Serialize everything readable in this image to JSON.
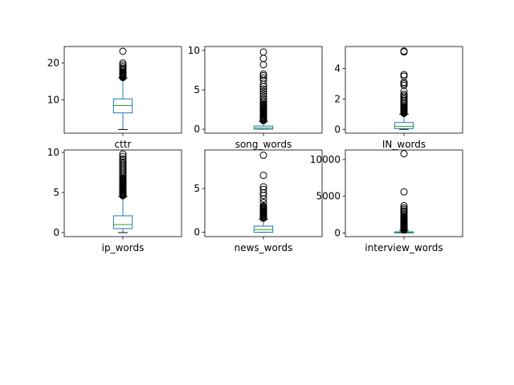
{
  "chart_data": [
    {
      "type": "box",
      "name": "cttr",
      "xlabel": "cttr",
      "ylim": [
        1.0,
        24.5
      ],
      "yticks": [
        10,
        20
      ],
      "stats": {
        "whisker_low": 2.0,
        "q1": 6.5,
        "median": 8.5,
        "q3": 10.3,
        "whisker_high": 16.0
      },
      "outliers": [
        16.1,
        16.3,
        16.5,
        16.7,
        16.9,
        17.1,
        17.3,
        17.5,
        17.8,
        18.2,
        18.6,
        19.0,
        19.5,
        20.0,
        23.2
      ]
    },
    {
      "type": "box",
      "name": "song_words",
      "xlabel": "song_words",
      "ylim": [
        -0.5,
        10.5
      ],
      "yticks": [
        0,
        5,
        10
      ],
      "stats": {
        "whisker_low": 0.0,
        "q1": 0.0,
        "median": 0.15,
        "q3": 0.4,
        "whisker_high": 1.0
      },
      "outliers": [
        1.1,
        1.2,
        1.3,
        1.4,
        1.5,
        1.6,
        1.7,
        1.8,
        1.9,
        2.0,
        2.1,
        2.2,
        2.3,
        2.4,
        2.5,
        2.6,
        2.7,
        2.8,
        2.9,
        3.0,
        3.1,
        3.2,
        3.4,
        3.6,
        3.9,
        4.2,
        4.5,
        4.8,
        5.1,
        5.4,
        5.7,
        6.2,
        6.5,
        6.8,
        7.0,
        8.2,
        9.0,
        9.8
      ]
    },
    {
      "type": "box",
      "name": "IN_words",
      "xlabel": "IN_words",
      "ylim": [
        -0.25,
        5.45
      ],
      "yticks": [
        0,
        2,
        4
      ],
      "stats": {
        "whisker_low": 0.0,
        "q1": 0.05,
        "median": 0.2,
        "q3": 0.45,
        "whisker_high": 1.0
      },
      "outliers": [
        1.05,
        1.1,
        1.15,
        1.2,
        1.25,
        1.3,
        1.35,
        1.4,
        1.45,
        1.5,
        1.6,
        1.7,
        1.8,
        1.9,
        2.0,
        2.1,
        2.2,
        2.3,
        2.5,
        2.9,
        3.0,
        3.1,
        3.5,
        3.6,
        5.1,
        5.15
      ]
    },
    {
      "type": "box",
      "name": "ip_words",
      "xlabel": "ip_words",
      "ylim": [
        -0.5,
        10.3
      ],
      "yticks": [
        0,
        5,
        10
      ],
      "stats": {
        "whisker_low": 0.0,
        "q1": 0.5,
        "median": 1.0,
        "q3": 2.1,
        "whisker_high": 4.5
      },
      "outliers": [
        4.6,
        4.7,
        4.8,
        4.9,
        5.0,
        5.1,
        5.2,
        5.3,
        5.4,
        5.5,
        5.6,
        5.7,
        5.8,
        5.9,
        6.0,
        6.1,
        6.2,
        6.3,
        6.4,
        6.5,
        6.6,
        6.7,
        6.8,
        7.0,
        7.2,
        7.4,
        7.6,
        7.8,
        8.0,
        8.2,
        8.4,
        8.6,
        8.8,
        9.0,
        9.2,
        9.5,
        9.8
      ]
    },
    {
      "type": "box",
      "name": "news_words",
      "xlabel": "news_words",
      "ylim": [
        -0.5,
        9.4
      ],
      "yticks": [
        0,
        5
      ],
      "stats": {
        "whisker_low": 0.0,
        "q1": 0.0,
        "median": 0.3,
        "q3": 0.7,
        "whisker_high": 1.5
      },
      "outliers": [
        1.6,
        1.7,
        1.8,
        1.9,
        2.0,
        2.1,
        2.2,
        2.3,
        2.4,
        2.5,
        2.6,
        2.7,
        2.8,
        2.9,
        3.0,
        3.4,
        3.8,
        4.2,
        4.5,
        4.9,
        5.2,
        6.5,
        8.8
      ]
    },
    {
      "type": "box",
      "name": "interview_words",
      "xlabel": "interview_words",
      "ylim": [
        -500,
        11300
      ],
      "yticks": [
        0,
        5000,
        10000
      ],
      "stats": {
        "whisker_low": 0,
        "q1": 0,
        "median": 60,
        "q3": 150,
        "whisker_high": 350
      },
      "outliers": [
        400,
        500,
        600,
        700,
        800,
        900,
        1000,
        1100,
        1200,
        1300,
        1400,
        1500,
        1600,
        1700,
        1800,
        1900,
        2000,
        2100,
        2200,
        2400,
        2600,
        2800,
        3000,
        3200,
        3400,
        3700,
        5600,
        10800
      ]
    }
  ],
  "colors": {
    "box": "#1f77b4",
    "median": "#2ca02c",
    "outlier": "#000000",
    "axis": "#000000"
  }
}
